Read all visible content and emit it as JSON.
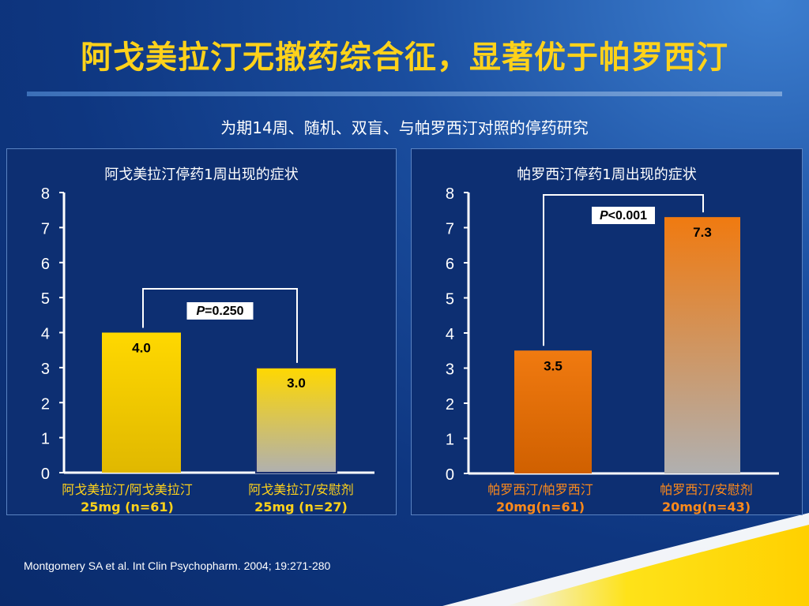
{
  "slide": {
    "title": "阿戈美拉汀无撤药综合征，显著优于帕罗西汀",
    "subtitle": "为期14周、随机、双盲、与帕罗西汀对照的停药研究",
    "footer": "Montgomery SA et al. Int Clin Psychopharm. 2004; 19:271-280"
  },
  "colors": {
    "title": "#ffd21a",
    "background": "#0e3680",
    "agomelatine_bar": "#ffd800",
    "paroxetine_bar": "#f07a10",
    "placebo_bar_bottom": "#b0b0b0",
    "left_label": "#ffd21a",
    "right_label": "#ff8a1a"
  },
  "chart_data": [
    {
      "type": "bar",
      "title": "阿戈美拉汀停药1周出现的症状",
      "categories": [
        "阿戈美拉汀/阿戈美拉汀\n25mg (n=61)",
        "阿戈美拉汀/安慰剂\n25mg (n=27)"
      ],
      "category_lines": [
        [
          "阿戈美拉汀/阿戈美拉汀",
          "25mg (n=61)"
        ],
        [
          "阿戈美拉汀/安慰剂",
          "25mg (n=27)"
        ]
      ],
      "values": [
        4.0,
        3.0
      ],
      "value_labels": [
        "4.0",
        "3.0"
      ],
      "ylim": [
        0,
        8
      ],
      "yticks": [
        "0",
        "1",
        "2",
        "3",
        "4",
        "5",
        "6",
        "7",
        "8"
      ],
      "significance": {
        "label_italic": "P",
        "label_rest": "=0.250"
      }
    },
    {
      "type": "bar",
      "title": "帕罗西汀停药1周出现的症状",
      "categories": [
        "帕罗西汀/帕罗西汀\n20mg(n=61)",
        "帕罗西汀/安慰剂\n20mg(n=43)"
      ],
      "category_lines": [
        [
          "帕罗西汀/帕罗西汀",
          "20mg(n=61)"
        ],
        [
          "帕罗西汀/安慰剂",
          "20mg(n=43)"
        ]
      ],
      "values": [
        3.5,
        7.3
      ],
      "value_labels": [
        "3.5",
        "7.3"
      ],
      "ylim": [
        0,
        8
      ],
      "yticks": [
        "0",
        "1",
        "2",
        "3",
        "4",
        "5",
        "6",
        "7",
        "8"
      ],
      "significance": {
        "label_italic": "P",
        "label_rest": "<0.001"
      }
    }
  ]
}
